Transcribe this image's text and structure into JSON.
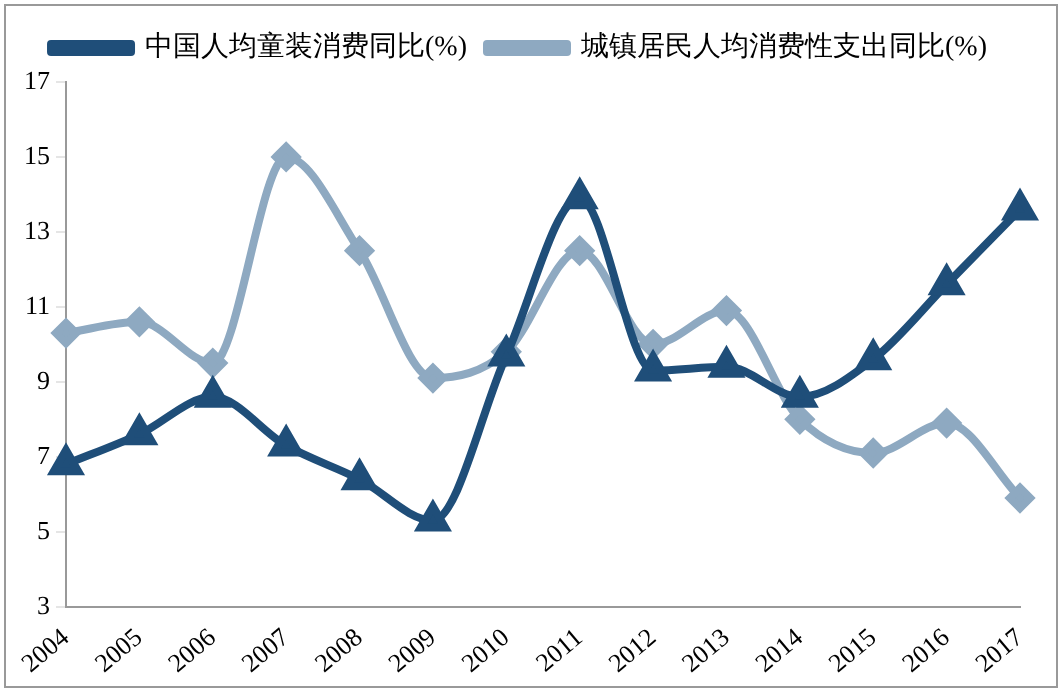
{
  "chart_data": {
    "type": "line",
    "categories": [
      "2004",
      "2005",
      "2006",
      "2007",
      "2008",
      "2009",
      "2010",
      "2011",
      "2012",
      "2013",
      "2014",
      "2015",
      "2016",
      "2017"
    ],
    "series": [
      {
        "name": "城镇居民人均消费性支出同比(%)",
        "color": "#8ea9c1",
        "marker": "diamond",
        "values": [
          10.3,
          10.6,
          9.5,
          15.0,
          12.5,
          9.1,
          9.8,
          12.5,
          10.0,
          10.9,
          8.0,
          7.1,
          7.9,
          5.9
        ]
      },
      {
        "name": "中国人均童装消费同比(%)",
        "color": "#1f4e79",
        "marker": "triangle",
        "values": [
          6.8,
          7.6,
          8.6,
          7.3,
          6.4,
          5.3,
          9.7,
          13.9,
          9.3,
          9.4,
          8.6,
          9.6,
          11.6,
          13.6
        ]
      }
    ],
    "ylim": [
      3,
      17
    ],
    "yticks": [
      3,
      5,
      7,
      9,
      11,
      13,
      15,
      17
    ],
    "grid": false,
    "legend": "top"
  }
}
